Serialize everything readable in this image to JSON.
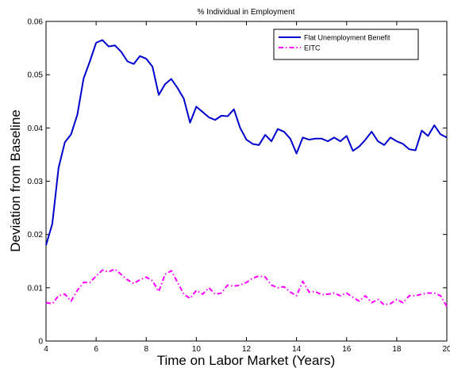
{
  "chart_data": {
    "type": "line",
    "title": "% Individual in Employment",
    "xlabel": "Time on Labor Market (Years)",
    "ylabel": "Deviation from Baseline",
    "x": [
      4,
      4.25,
      4.5,
      4.75,
      5,
      5.25,
      5.5,
      5.75,
      6,
      6.25,
      6.5,
      6.75,
      7,
      7.25,
      7.5,
      7.75,
      8,
      8.25,
      8.5,
      8.75,
      9,
      9.25,
      9.5,
      9.75,
      10,
      10.25,
      10.5,
      10.75,
      11,
      11.25,
      11.5,
      11.75,
      12,
      12.25,
      12.5,
      12.75,
      13,
      13.25,
      13.5,
      13.75,
      14,
      14.25,
      14.5,
      14.75,
      15,
      15.25,
      15.5,
      15.75,
      16,
      16.25,
      16.5,
      16.75,
      17,
      17.25,
      17.5,
      17.75,
      18,
      18.25,
      18.5,
      18.75,
      19,
      19.25,
      19.5,
      19.75,
      20
    ],
    "series": [
      {
        "name": "Flat Unemployment Benefit",
        "color": "#0000cc",
        "dash": "solid",
        "values": [
          0.018,
          0.022,
          0.0325,
          0.0373,
          0.0388,
          0.0425,
          0.0493,
          0.0525,
          0.056,
          0.0565,
          0.0553,
          0.0555,
          0.0543,
          0.0525,
          0.052,
          0.0535,
          0.053,
          0.0515,
          0.0462,
          0.0482,
          0.0492,
          0.0475,
          0.0455,
          0.041,
          0.044,
          0.043,
          0.042,
          0.0415,
          0.0423,
          0.0422,
          0.0435,
          0.04,
          0.0378,
          0.037,
          0.0368,
          0.0387,
          0.0375,
          0.0398,
          0.0393,
          0.038,
          0.0352,
          0.0382,
          0.0378,
          0.038,
          0.038,
          0.0375,
          0.0382,
          0.0375,
          0.0385,
          0.0357,
          0.0365,
          0.0378,
          0.0393,
          0.0375,
          0.0368,
          0.0382,
          0.0375,
          0.037,
          0.036,
          0.0358,
          0.0395,
          0.0385,
          0.0405,
          0.0388,
          0.0382
        ]
      },
      {
        "name": "EITC",
        "color": "#ff00ff",
        "dash": "dashdot",
        "values": [
          0.0072,
          0.007,
          0.0085,
          0.0088,
          0.0075,
          0.0095,
          0.011,
          0.011,
          0.0122,
          0.0133,
          0.013,
          0.0135,
          0.0125,
          0.0115,
          0.0108,
          0.0115,
          0.012,
          0.0113,
          0.0093,
          0.0125,
          0.0132,
          0.011,
          0.0088,
          0.008,
          0.0095,
          0.0088,
          0.01,
          0.0088,
          0.009,
          0.0105,
          0.0103,
          0.0105,
          0.011,
          0.0118,
          0.0122,
          0.012,
          0.0105,
          0.01,
          0.0102,
          0.0092,
          0.0085,
          0.0112,
          0.0092,
          0.0093,
          0.0087,
          0.0088,
          0.009,
          0.0085,
          0.009,
          0.0082,
          0.0075,
          0.0085,
          0.0072,
          0.0078,
          0.0068,
          0.007,
          0.0078,
          0.0072,
          0.0085,
          0.0085,
          0.0088,
          0.009,
          0.009,
          0.0085,
          0.0065
        ]
      }
    ],
    "xlim": [
      4,
      20
    ],
    "ylim": [
      0,
      0.06
    ],
    "xticks": [
      4,
      6,
      8,
      10,
      12,
      14,
      16,
      18,
      20
    ],
    "yticks": [
      0,
      0.01,
      0.02,
      0.03,
      0.04,
      0.05,
      0.06
    ],
    "grid": false,
    "legend": "upper right"
  }
}
